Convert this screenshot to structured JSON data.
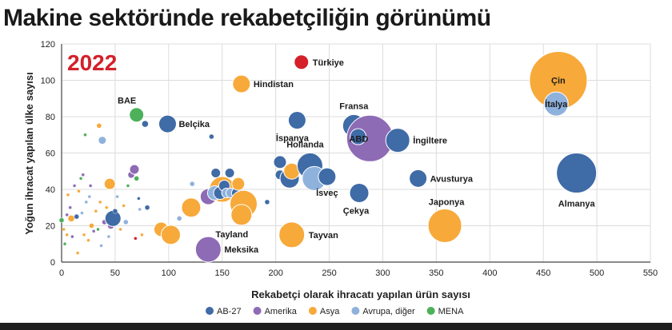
{
  "title": "Makine sektöründe rekabetçiliğin görünümü",
  "chart_data": {
    "type": "scatter",
    "subtitle": "2022",
    "xlabel": "Rekabetçi olarak ihracatı yapılan ürün sayısı",
    "ylabel": "Yoğun ihracat yapılan ülke sayısı",
    "xlim": [
      0,
      550
    ],
    "ylim": [
      0,
      120
    ],
    "xticks": [
      "0",
      "50",
      "100",
      "150",
      "200",
      "250",
      "300",
      "350",
      "400",
      "450",
      "500",
      "550"
    ],
    "yticks": [
      "0",
      "20",
      "40",
      "60",
      "80",
      "100",
      "120"
    ],
    "legend_position": "bottom",
    "colors": {
      "AB-27": "#3F6BA6",
      "Amerika": "#8E6BB5",
      "Asya": "#F7A93A",
      "Avrupa, diğer": "#8FB2DD",
      "MENA": "#4DB05A",
      "Türkiye": "#D3202A"
    },
    "legend": [
      {
        "group": "AB-27",
        "label": "AB-27"
      },
      {
        "group": "Amerika",
        "label": "Amerika"
      },
      {
        "group": "Asya",
        "label": "Asya"
      },
      {
        "group": "Avrupa, diğer",
        "label": "Avrupa, diğer"
      },
      {
        "group": "MENA",
        "label": "MENA"
      }
    ],
    "points": [
      {
        "x": 0,
        "y": 23,
        "r": 3,
        "group": "MENA"
      },
      {
        "x": 2,
        "y": 18,
        "r": 2,
        "group": "Asya"
      },
      {
        "x": 3,
        "y": 10,
        "r": 2,
        "group": "MENA"
      },
      {
        "x": 5,
        "y": 26,
        "r": 2,
        "group": "Amerika"
      },
      {
        "x": 5,
        "y": 15,
        "r": 2,
        "group": "Asya"
      },
      {
        "x": 6,
        "y": 37,
        "r": 2,
        "group": "Asya"
      },
      {
        "x": 8,
        "y": 30,
        "r": 2,
        "group": "Amerika"
      },
      {
        "x": 9,
        "y": 24,
        "r": 4,
        "group": "Asya"
      },
      {
        "x": 10,
        "y": 14,
        "r": 2,
        "group": "Amerika"
      },
      {
        "x": 12,
        "y": 42,
        "r": 2,
        "group": "Amerika"
      },
      {
        "x": 14,
        "y": 25,
        "r": 3,
        "group": "AB-27"
      },
      {
        "x": 15,
        "y": 5,
        "r": 2,
        "group": "Asya"
      },
      {
        "x": 16,
        "y": 39,
        "r": 2,
        "group": "Asya"
      },
      {
        "x": 18,
        "y": 46,
        "r": 2,
        "group": "MENA"
      },
      {
        "x": 19,
        "y": 27,
        "r": 2,
        "group": "Avrupa, diğer"
      },
      {
        "x": 20,
        "y": 48,
        "r": 2,
        "group": "Amerika"
      },
      {
        "x": 21,
        "y": 15,
        "r": 2,
        "group": "Asya"
      },
      {
        "x": 22,
        "y": 70,
        "r": 2,
        "group": "MENA"
      },
      {
        "x": 23,
        "y": 33,
        "r": 2,
        "group": "Avrupa, diğer"
      },
      {
        "x": 25,
        "y": 12,
        "r": 2,
        "group": "Asya"
      },
      {
        "x": 26,
        "y": 36,
        "r": 2,
        "group": "Avrupa, diğer"
      },
      {
        "x": 27,
        "y": 42,
        "r": 2,
        "group": "Amerika"
      },
      {
        "x": 28,
        "y": 20,
        "r": 3,
        "group": "Asya"
      },
      {
        "x": 30,
        "y": 17,
        "r": 2,
        "group": "Amerika"
      },
      {
        "x": 32,
        "y": 28,
        "r": 2,
        "group": "Asya"
      },
      {
        "x": 34,
        "y": 18,
        "r": 2,
        "group": "MENA"
      },
      {
        "x": 35,
        "y": 75,
        "r": 3,
        "group": "Asya"
      },
      {
        "x": 36,
        "y": 33,
        "r": 2,
        "group": "Asya"
      },
      {
        "x": 37,
        "y": 9,
        "r": 2,
        "group": "Avrupa, diğer"
      },
      {
        "x": 38,
        "y": 67,
        "r": 5,
        "group": "Avrupa, diğer"
      },
      {
        "x": 40,
        "y": 22,
        "r": 3,
        "group": "Amerika"
      },
      {
        "x": 42,
        "y": 30,
        "r": 2,
        "group": "Asya"
      },
      {
        "x": 44,
        "y": 14,
        "r": 2,
        "group": "Avrupa, diğer"
      },
      {
        "x": 45,
        "y": 43,
        "r": 7,
        "group": "Asya"
      },
      {
        "x": 46,
        "y": 20,
        "r": 4,
        "group": "Amerika"
      },
      {
        "x": 48,
        "y": 24,
        "r": 10,
        "group": "AB-27"
      },
      {
        "x": 50,
        "y": 28,
        "r": 3,
        "group": "AB-27"
      },
      {
        "x": 52,
        "y": 36,
        "r": 2,
        "group": "Avrupa, diğer"
      },
      {
        "x": 55,
        "y": 18,
        "r": 2,
        "group": "Asya"
      },
      {
        "x": 58,
        "y": 31,
        "r": 2,
        "group": "Asya"
      },
      {
        "x": 60,
        "y": 22,
        "r": 3,
        "group": "Avrupa, diğer"
      },
      {
        "x": 62,
        "y": 42,
        "r": 2,
        "group": "MENA"
      },
      {
        "x": 65,
        "y": 48,
        "r": 4,
        "group": "Amerika"
      },
      {
        "x": 68,
        "y": 51,
        "r": 6,
        "group": "Amerika"
      },
      {
        "x": 69,
        "y": 13,
        "r": 2,
        "group": "Türkiye"
      },
      {
        "x": 70,
        "y": 46,
        "r": 3,
        "group": "MENA"
      },
      {
        "x": 72,
        "y": 35,
        "r": 2,
        "group": "AB-27"
      },
      {
        "x": 73,
        "y": 29,
        "r": 2,
        "group": "Avrupa, diğer"
      },
      {
        "x": 75,
        "y": 15,
        "r": 2,
        "group": "Asya"
      },
      {
        "x": 78,
        "y": 76,
        "r": 4,
        "group": "AB-27"
      },
      {
        "x": 80,
        "y": 30,
        "r": 3,
        "group": "AB-27"
      },
      {
        "x": 70,
        "y": 81,
        "r": 9,
        "group": "MENA",
        "label": "BAE",
        "lx": -12,
        "ly": -14,
        "anchor": "middle"
      },
      {
        "x": 99,
        "y": 76,
        "r": 11,
        "group": "AB-27",
        "label": "Belçika",
        "lx": 14,
        "ly": 4,
        "anchor": "start"
      },
      {
        "x": 93,
        "y": 18,
        "r": 9,
        "group": "Asya"
      },
      {
        "x": 102,
        "y": 15,
        "r": 12,
        "group": "Asya"
      },
      {
        "x": 110,
        "y": 24,
        "r": 3,
        "group": "Avrupa, diğer"
      },
      {
        "x": 121,
        "y": 30,
        "r": 12,
        "group": "Asya"
      },
      {
        "x": 122,
        "y": 43,
        "r": 3,
        "group": "Avrupa, diğer"
      },
      {
        "x": 137,
        "y": 36,
        "r": 10,
        "group": "Amerika"
      },
      {
        "x": 137,
        "y": 7,
        "r": 16,
        "group": "Amerika",
        "label": "Meksika",
        "lx": 20,
        "ly": 4,
        "anchor": "start"
      },
      {
        "x": 140,
        "y": 69,
        "r": 3,
        "group": "AB-27"
      },
      {
        "x": 144,
        "y": 49,
        "r": 6,
        "group": "AB-27"
      },
      {
        "x": 150,
        "y": 40,
        "r": 16,
        "group": "Asya"
      },
      {
        "x": 143,
        "y": 38,
        "r": 9,
        "group": "Avrupa, diğer"
      },
      {
        "x": 148,
        "y": 38,
        "r": 8,
        "group": "AB-27"
      },
      {
        "x": 152,
        "y": 42,
        "r": 7,
        "group": "AB-27"
      },
      {
        "x": 154,
        "y": 38,
        "r": 6,
        "group": "Avrupa, diğer"
      },
      {
        "x": 157,
        "y": 49,
        "r": 6,
        "group": "AB-27"
      },
      {
        "x": 158,
        "y": 38,
        "r": 6,
        "group": "Avrupa, diğer"
      },
      {
        "x": 164,
        "y": 38,
        "r": 7,
        "group": "AB-27"
      },
      {
        "x": 165,
        "y": 43,
        "r": 8,
        "group": "Asya"
      },
      {
        "x": 170,
        "y": 32,
        "r": 17,
        "group": "Asya"
      },
      {
        "x": 168,
        "y": 26,
        "r": 13,
        "group": "Asya",
        "label": "Tayland",
        "lx": -12,
        "ly": 28,
        "anchor": "middle"
      },
      {
        "x": 168,
        "y": 98,
        "r": 11,
        "group": "Asya",
        "label": "Hindistan",
        "lx": 15,
        "ly": 4,
        "anchor": "start"
      },
      {
        "x": 192,
        "y": 33,
        "r": 3,
        "group": "AB-27"
      },
      {
        "x": 204,
        "y": 55,
        "r": 8,
        "group": "AB-27"
      },
      {
        "x": 204,
        "y": 48,
        "r": 6,
        "group": "AB-27"
      },
      {
        "x": 213,
        "y": 46,
        "r": 12,
        "group": "AB-27"
      },
      {
        "x": 215,
        "y": 50,
        "r": 10,
        "group": "Asya"
      },
      {
        "x": 215,
        "y": 15,
        "r": 16,
        "group": "Asya",
        "label": "Tayvan",
        "lx": 21,
        "ly": 4,
        "anchor": "start"
      },
      {
        "x": 220,
        "y": 78,
        "r": 11,
        "group": "AB-27",
        "label": "İspanya",
        "lx": -6,
        "ly": 26,
        "anchor": "middle"
      },
      {
        "x": 224,
        "y": 110,
        "r": 9,
        "group": "Türkiye",
        "label": "Türkiye",
        "lx": 14,
        "ly": 4,
        "anchor": "start"
      },
      {
        "x": 232,
        "y": 53,
        "r": 16,
        "group": "AB-27",
        "label": "Hollanda",
        "lx": -6,
        "ly": -23,
        "anchor": "middle"
      },
      {
        "x": 236,
        "y": 46,
        "r": 15,
        "group": "Avrupa, diğer"
      },
      {
        "x": 248,
        "y": 47,
        "r": 11,
        "group": "AB-27",
        "label": "İsveç",
        "lx": 0,
        "ly": 24,
        "anchor": "middle"
      },
      {
        "x": 273,
        "y": 75,
        "r": 14,
        "group": "AB-27",
        "label": "Fransa",
        "lx": 0,
        "ly": -21,
        "anchor": "middle"
      },
      {
        "x": 278,
        "y": 38,
        "r": 12,
        "group": "AB-27",
        "label": "Çekya",
        "lx": -4,
        "ly": 26,
        "anchor": "middle"
      },
      {
        "x": 288,
        "y": 68,
        "r": 29,
        "group": "Amerika",
        "label": "ABD",
        "lx": -14,
        "ly": 4,
        "anchor": "middle",
        "light": true
      },
      {
        "x": 277,
        "y": 69,
        "r": 10,
        "group": "AB-27"
      },
      {
        "x": 314,
        "y": 67,
        "r": 15,
        "group": "AB-27",
        "label": "İngiltere",
        "lx": 19,
        "ly": 4,
        "anchor": "start"
      },
      {
        "x": 333,
        "y": 46,
        "r": 11,
        "group": "AB-27",
        "label": "Avusturya",
        "lx": 15,
        "ly": 4,
        "anchor": "start"
      },
      {
        "x": 358,
        "y": 20,
        "r": 21,
        "group": "Asya",
        "label": "Japonya",
        "lx": 2,
        "ly": -26,
        "anchor": "middle"
      },
      {
        "x": 464,
        "y": 100,
        "r": 36,
        "group": "Asya",
        "label": "Çin",
        "lx": 0,
        "ly": 4,
        "anchor": "middle"
      },
      {
        "x": 462,
        "y": 87,
        "r": 15,
        "group": "Avrupa, diğer",
        "label": "İtalya",
        "lx": 0,
        "ly": 4,
        "anchor": "middle",
        "light": true
      },
      {
        "x": 481,
        "y": 49,
        "r": 25,
        "group": "AB-27",
        "label": "Almanya",
        "lx": 0,
        "ly": 42,
        "anchor": "middle"
      }
    ]
  }
}
